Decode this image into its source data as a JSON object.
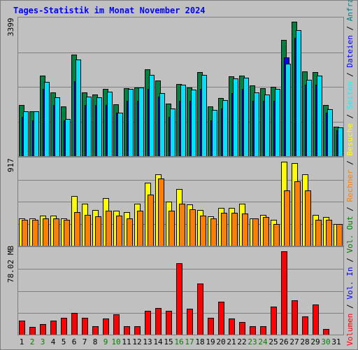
{
  "title": "Tages-Statistik im Monat November 2024",
  "panels": {
    "top_max": "3399",
    "mid_max": "917",
    "bot_max": "78.02 MB"
  },
  "right_labels": [
    {
      "text": "Volumen",
      "color": "#ff0000"
    },
    {
      "text": " / ",
      "color": "#000000"
    },
    {
      "text": "Vol. In",
      "color": "#0000ff"
    },
    {
      "text": " / ",
      "color": "#000000"
    },
    {
      "text": "Vol. Out",
      "color": "#008000"
    },
    {
      "text": " / ",
      "color": "#000000"
    },
    {
      "text": "Rechner",
      "color": "#ff8000"
    },
    {
      "text": " / ",
      "color": "#000000"
    },
    {
      "text": "Besuche",
      "color": "#ffff00"
    },
    {
      "text": " / ",
      "color": "#000000"
    },
    {
      "text": "Seiten",
      "color": "#00ffff"
    },
    {
      "text": " / ",
      "color": "#000000"
    },
    {
      "text": "Dateien",
      "color": "#0000ff"
    },
    {
      "text": " / ",
      "color": "#000000"
    },
    {
      "text": "Anfragen",
      "color": "#008080"
    }
  ],
  "colors": {
    "anfragen": "#008040",
    "dateien": "#0000ff",
    "seiten": "#00e0ff",
    "besuche": "#ffff00",
    "rechner": "#ff8000",
    "volumen": "#ff0000",
    "weekend_label": "#008000",
    "weekday_label": "#000000"
  },
  "chart_data": [
    {
      "type": "bar",
      "ylim": [
        0,
        3399
      ],
      "categories": [
        "1",
        "2",
        "3",
        "4",
        "5",
        "6",
        "7",
        "8",
        "9",
        "10",
        "11",
        "12",
        "13",
        "14",
        "15",
        "16",
        "17",
        "18",
        "19",
        "20",
        "21",
        "22",
        "23",
        "24",
        "25",
        "26",
        "27",
        "28",
        "29",
        "30",
        "31"
      ],
      "weekend_days": [
        "2",
        "3",
        "9",
        "10",
        "16",
        "17",
        "23",
        "24",
        "30"
      ],
      "series": [
        {
          "name": "Anfragen",
          "values": [
            1290,
            1130,
            2040,
            1610,
            1260,
            2560,
            1610,
            1550,
            1700,
            1310,
            1710,
            1730,
            2200,
            1910,
            1330,
            1820,
            1730,
            2130,
            1250,
            1470,
            2010,
            2040,
            1790,
            1710,
            1750,
            2940,
            3399,
            2140,
            2130,
            1290,
            740
          ]
        },
        {
          "name": "Dateien",
          "values": [
            1000,
            900,
            1700,
            1300,
            900,
            1900,
            1300,
            1300,
            1300,
            1100,
            1400,
            1400,
            1700,
            1500,
            1000,
            1400,
            1400,
            1700,
            900,
            1200,
            1600,
            1700,
            1400,
            1400,
            1400,
            2500,
            3000,
            1800,
            1800,
            1100,
            650
          ]
        },
        {
          "name": "Seiten",
          "values": [
            1130,
            1130,
            1880,
            1480,
            930,
            2450,
            1500,
            1480,
            1630,
            1100,
            1700,
            1730,
            2050,
            1590,
            1200,
            1800,
            1680,
            2060,
            1160,
            1420,
            1960,
            1990,
            1610,
            1560,
            1700,
            2340,
            3180,
            1930,
            2040,
            1190,
            720
          ]
        }
      ]
    },
    {
      "type": "bar",
      "ylim": [
        0,
        917
      ],
      "categories": [
        "1",
        "2",
        "3",
        "4",
        "5",
        "6",
        "7",
        "8",
        "9",
        "10",
        "11",
        "12",
        "13",
        "14",
        "15",
        "16",
        "17",
        "18",
        "19",
        "20",
        "21",
        "22",
        "23",
        "24",
        "25",
        "26",
        "27",
        "28",
        "29",
        "30",
        "31"
      ],
      "series": [
        {
          "name": "Besuche",
          "values": [
            300,
            300,
            330,
            330,
            300,
            540,
            460,
            390,
            520,
            380,
            370,
            460,
            690,
            780,
            480,
            620,
            450,
            390,
            320,
            410,
            410,
            460,
            300,
            340,
            280,
            917,
            900,
            780,
            340,
            310,
            240
          ]
        },
        {
          "name": "Rechner",
          "values": [
            280,
            280,
            300,
            300,
            280,
            370,
            340,
            320,
            380,
            330,
            300,
            380,
            560,
            730,
            380,
            460,
            400,
            330,
            300,
            360,
            360,
            350,
            300,
            310,
            240,
            600,
            700,
            600,
            280,
            280,
            240
          ]
        }
      ]
    },
    {
      "type": "bar",
      "ylim": [
        0,
        78.02
      ],
      "ylabel": "MB",
      "categories": [
        "1",
        "2",
        "3",
        "4",
        "5",
        "6",
        "7",
        "8",
        "9",
        "10",
        "11",
        "12",
        "13",
        "14",
        "15",
        "16",
        "17",
        "18",
        "19",
        "20",
        "21",
        "22",
        "23",
        "24",
        "25",
        "26",
        "27",
        "28",
        "29",
        "30",
        "31"
      ],
      "series": [
        {
          "name": "Volumen",
          "values": [
            13,
            7,
            10,
            13,
            16,
            20,
            16,
            8,
            15,
            19,
            8,
            8,
            22,
            25,
            22,
            67,
            24,
            48,
            16,
            31,
            15,
            12,
            8,
            8,
            26,
            78,
            32,
            17,
            28,
            5,
            0
          ]
        }
      ]
    }
  ]
}
